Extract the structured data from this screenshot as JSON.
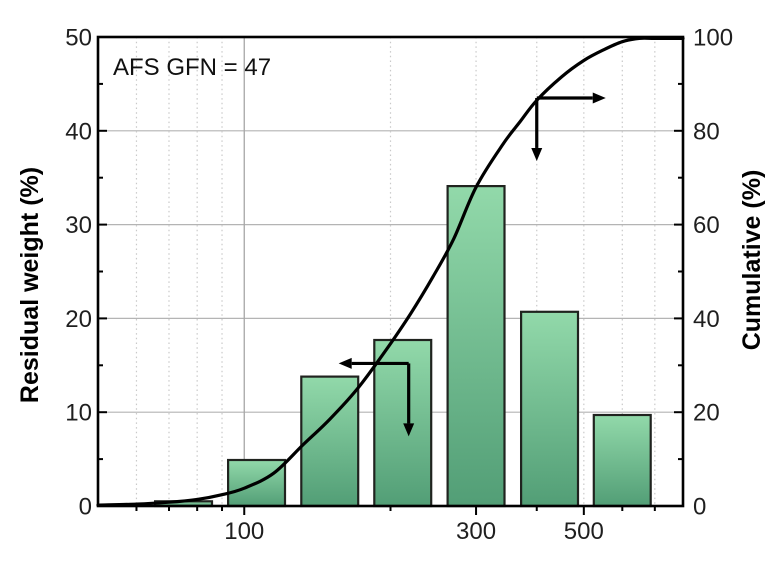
{
  "chart_data": {
    "type": "bar",
    "subtype": "histogram-with-cumulative-curve",
    "annotation": "AFS GFN = 47",
    "x_axis": {
      "scale": "log",
      "range": [
        50,
        800
      ],
      "major_ticks": [
        {
          "v": 100,
          "label": "100"
        },
        {
          "v": 300,
          "label": "300"
        },
        {
          "v": 500,
          "label": "500"
        }
      ],
      "minor_ticks": [
        60,
        70,
        80,
        90,
        200,
        400,
        600,
        700
      ],
      "solid_gridlines": [
        100
      ],
      "dotted_gridlines": [
        60,
        70,
        80,
        90,
        200,
        300,
        400,
        500,
        600,
        700
      ]
    },
    "left_axis": {
      "title": "Residual weight (%)",
      "range": [
        0,
        50
      ],
      "major_ticks": [
        {
          "v": 0,
          "label": "0"
        },
        {
          "v": 10,
          "label": "10"
        },
        {
          "v": 20,
          "label": "20"
        },
        {
          "v": 30,
          "label": "30"
        },
        {
          "v": 40,
          "label": "40"
        },
        {
          "v": 50,
          "label": "50"
        }
      ],
      "minor_ticks": [
        5,
        15,
        25,
        35,
        45
      ],
      "gridlines": [
        10,
        20,
        30,
        40
      ]
    },
    "right_axis": {
      "title": "Cumulative (%)",
      "range": [
        0,
        100
      ],
      "major_ticks": [
        {
          "v": 0,
          "label": "0"
        },
        {
          "v": 20,
          "label": "20"
        },
        {
          "v": 40,
          "label": "40"
        },
        {
          "v": 60,
          "label": "60"
        },
        {
          "v": 80,
          "label": "80"
        },
        {
          "v": 100,
          "label": "100"
        }
      ],
      "minor_ticks": [
        10,
        30,
        50,
        70,
        90
      ]
    },
    "bars": {
      "name": "Residual weight",
      "axis": "left",
      "centers_um": [
        75,
        106,
        150,
        212,
        300,
        425,
        600
      ],
      "values": [
        0.5,
        4.9,
        13.8,
        17.7,
        34.1,
        20.7,
        9.7
      ],
      "half_width_decades": 0.0586
    },
    "curve": {
      "name": "Cumulative",
      "axis": "right",
      "points": [
        [
          50,
          0.2
        ],
        [
          60,
          0.4
        ],
        [
          70,
          0.8
        ],
        [
          80,
          1.4
        ],
        [
          90,
          2.4
        ],
        [
          100,
          3.8
        ],
        [
          115,
          7
        ],
        [
          132,
          13
        ],
        [
          150,
          18.5
        ],
        [
          171,
          25
        ],
        [
          195,
          33
        ],
        [
          220,
          41
        ],
        [
          245,
          49
        ],
        [
          270,
          57
        ],
        [
          300,
          68
        ],
        [
          340,
          77
        ],
        [
          370,
          82
        ],
        [
          400,
          86.5
        ],
        [
          450,
          91.5
        ],
        [
          500,
          95
        ],
        [
          550,
          97.3
        ],
        [
          600,
          99
        ],
        [
          650,
          99.7
        ],
        [
          700,
          100
        ],
        [
          800,
          100
        ]
      ]
    },
    "pointer_arrows": [
      {
        "points_to": "right-axis",
        "corner_um": 400,
        "corner_value": 87,
        "corner_axis": "right",
        "arms": [
          {
            "dir": "right",
            "len": 56
          },
          {
            "dir": "down",
            "len": 50
          }
        ]
      },
      {
        "points_to": "left-axis",
        "corner_um": 218,
        "corner_value": 15.2,
        "corner_axis": "left",
        "arms": [
          {
            "dir": "left",
            "len": 57
          },
          {
            "dir": "down",
            "len": 60
          }
        ]
      }
    ]
  },
  "colors": {
    "background": "#ffffff",
    "bar_fill_top": "#92d9aa",
    "bar_fill_bottom": "#529e76",
    "bar_border": "#20231f",
    "curve": "#000000",
    "axis": "#000000",
    "grid_h": "#b4b4b4",
    "grid_major_v": "#a6a6a6",
    "grid_minor_v": "#c9c9c9",
    "text": "#1f1f1f"
  }
}
